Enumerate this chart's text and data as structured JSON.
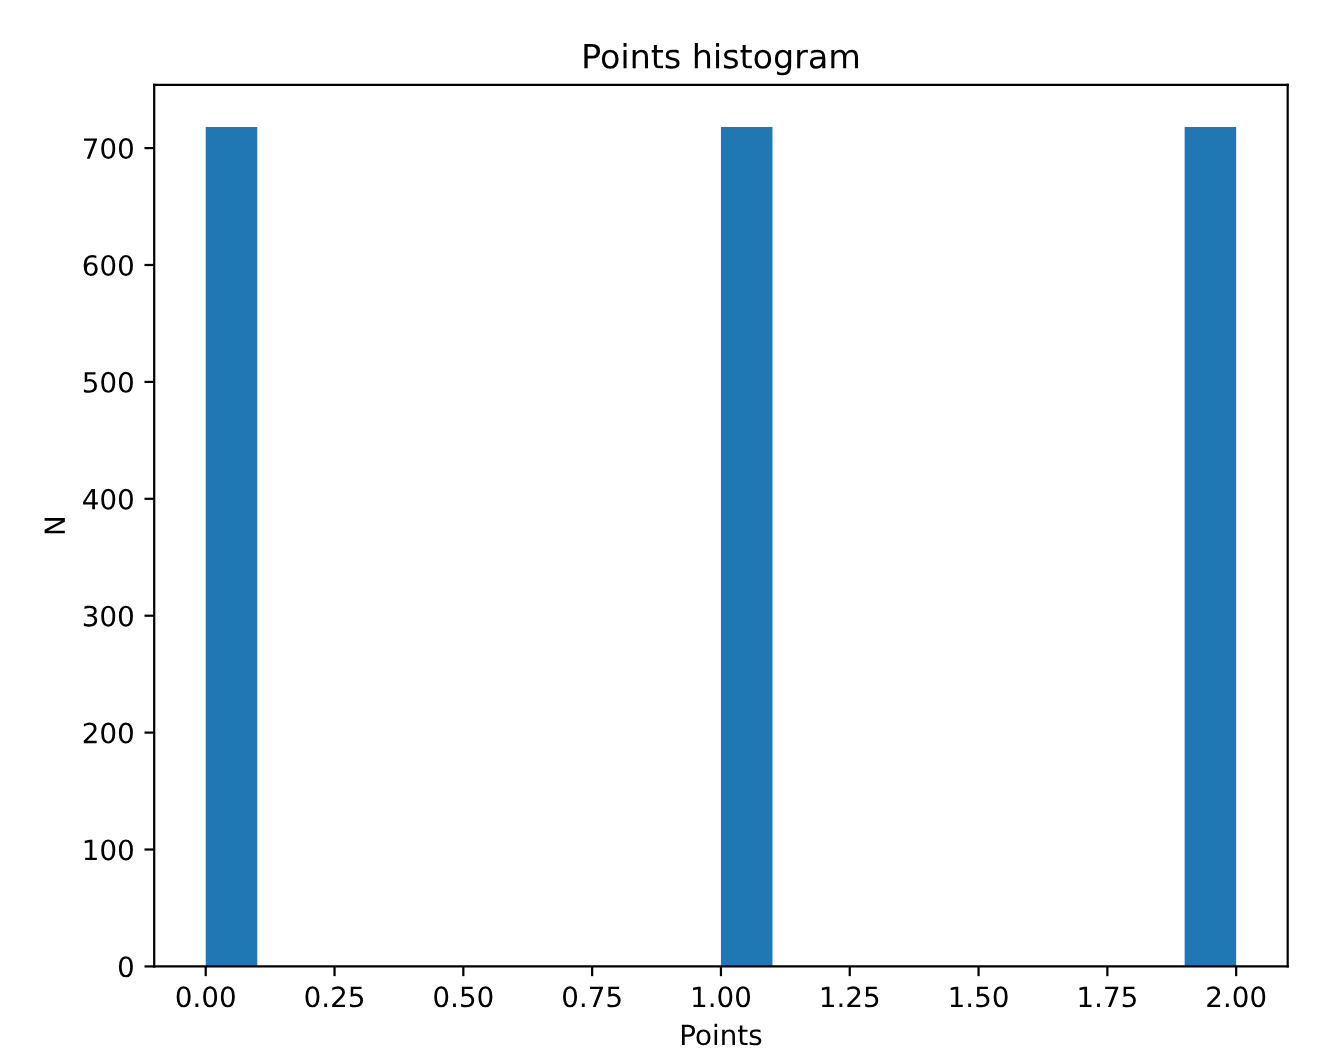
{
  "chart_data": {
    "type": "histogram",
    "title": "Points histogram",
    "xlabel": "Points",
    "ylabel": "N",
    "bins": [
      0,
      0.1,
      0.2,
      0.3,
      0.4,
      0.5,
      0.6,
      0.7,
      0.8,
      0.9,
      1.0,
      1.1,
      1.2,
      1.3,
      1.4,
      1.5,
      1.6,
      1.7,
      1.8,
      1.9,
      2.0
    ],
    "values": [
      718,
      0,
      0,
      0,
      0,
      0,
      0,
      0,
      0,
      0,
      718,
      0,
      0,
      0,
      0,
      0,
      0,
      0,
      0,
      718
    ],
    "color": "#1f77b4",
    "xlim": [
      -0.1,
      2.1
    ],
    "xticks": [
      {
        "value": 0,
        "label": "0.00"
      },
      {
        "value": 0.25,
        "label": "0.25"
      },
      {
        "value": 0.5,
        "label": "0.50"
      },
      {
        "value": 0.75,
        "label": "0.75"
      },
      {
        "value": 1.0,
        "label": "1.00"
      },
      {
        "value": 1.25,
        "label": "1.25"
      },
      {
        "value": 1.5,
        "label": "1.50"
      },
      {
        "value": 1.75,
        "label": "1.75"
      },
      {
        "value": 2.0,
        "label": "2.00"
      }
    ],
    "ylim": [
      0,
      754
    ],
    "yticks": [
      0,
      100,
      200,
      300,
      400,
      500,
      600,
      700
    ]
  }
}
